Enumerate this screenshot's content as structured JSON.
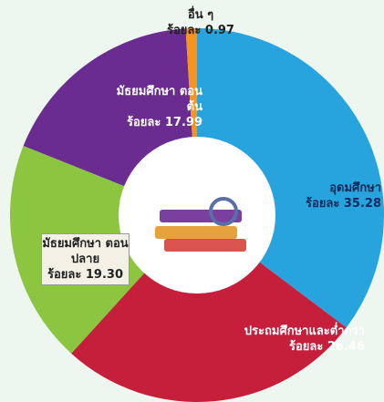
{
  "chart_data": {
    "type": "donut",
    "categories": [
      "อุดมศึกษา",
      "ประถมศึกษาและต่ำกว่า",
      "มัธยมศึกษา ตอนปลาย",
      "มัธยมศึกษา ตอนต้น",
      "อื่น ๆ"
    ],
    "values": [
      35.28,
      26.46,
      19.3,
      17.99,
      0.97
    ],
    "value_labels": [
      "ร้อยละ 35.28",
      "ร้อยละ 26.46",
      "ร้อยละ 19.30",
      "ร้อยละ 17.99",
      "ร้อยละ 0.97"
    ],
    "colors": [
      "#27a4dd",
      "#c51f3c",
      "#8cc640",
      "#6b2c91",
      "#f7941d"
    ]
  }
}
